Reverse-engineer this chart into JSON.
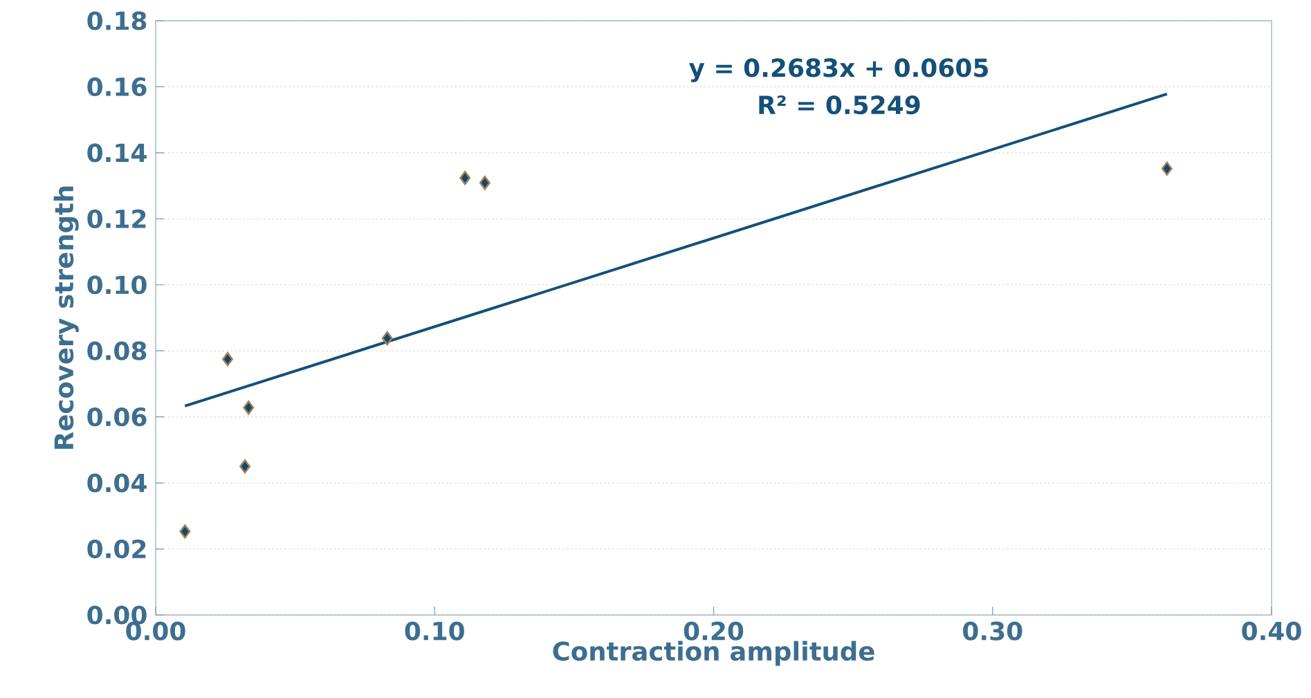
{
  "chart_data": {
    "type": "scatter",
    "xlabel": "Contraction amplitude",
    "ylabel": "Recovery strength",
    "annotations": [
      "y = 0.2683x + 0.0605",
      "R² = 0.5249"
    ],
    "xlim": [
      0,
      0.4
    ],
    "ylim": [
      0,
      0.18
    ],
    "xticks": [
      {
        "value": 0,
        "label": "0.00"
      },
      {
        "value": 0.1,
        "label": "0.10"
      },
      {
        "value": 0.2,
        "label": "0.20"
      },
      {
        "value": 0.3,
        "label": "0.30"
      },
      {
        "value": 0.4,
        "label": "0.40"
      }
    ],
    "yticks": [
      {
        "value": 0,
        "label": "0.00"
      },
      {
        "value": 0.02,
        "label": "0.02"
      },
      {
        "value": 0.04,
        "label": "0.04"
      },
      {
        "value": 0.06,
        "label": "0.06"
      },
      {
        "value": 0.08,
        "label": "0.08"
      },
      {
        "value": 0.1,
        "label": "0.10"
      },
      {
        "value": 0.12,
        "label": "0.12"
      },
      {
        "value": 0.14,
        "label": "0.14"
      },
      {
        "value": 0.16,
        "label": "0.16"
      },
      {
        "value": 0.18,
        "label": "0.18"
      }
    ],
    "grid": "y",
    "marker": "diamond",
    "series": [
      {
        "color": "#0d4a6e",
        "x": [
          0.0105,
          0.0258,
          0.0333,
          0.032,
          0.083,
          0.1109,
          0.118,
          0.3625
        ],
        "values": [
          0.0253,
          0.0775,
          0.0628,
          0.045,
          0.0838,
          0.1324,
          0.1309,
          0.1352
        ]
      },
      {
        "type": "line",
        "color": "#13507a",
        "marker": "none",
        "x": [
          0.0105,
          0.3625
        ],
        "values": [
          0.0633,
          0.1578
        ]
      }
    ]
  }
}
